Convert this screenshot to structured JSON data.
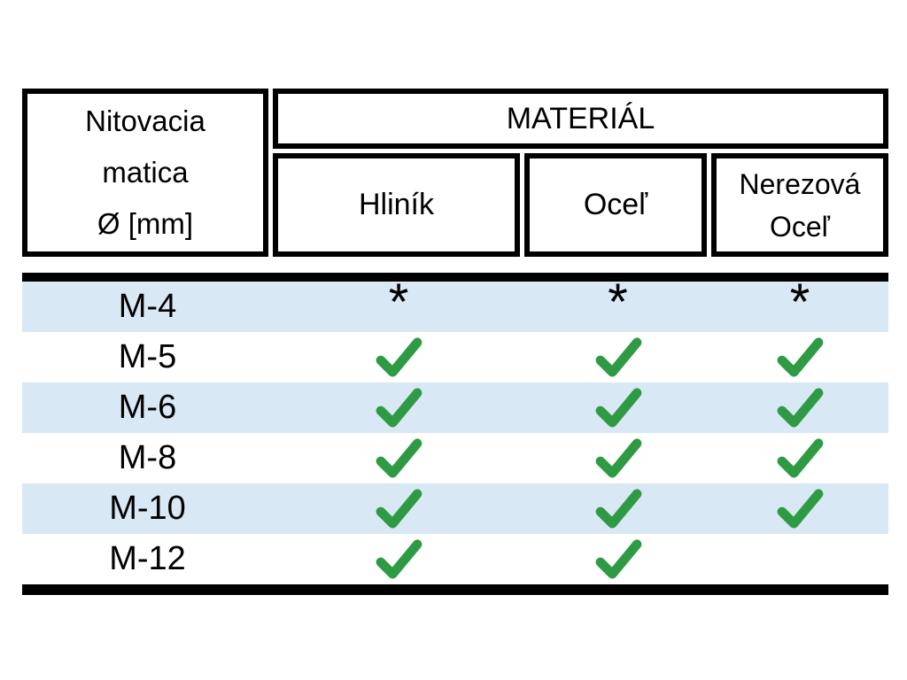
{
  "table": {
    "corner_header": {
      "lines": [
        "Nitovacia",
        "matica",
        "Ø [mm]"
      ]
    },
    "group_header": "MATERIÁL",
    "columns": [
      "Hliník",
      "Oceľ",
      "Nerezová Oceľ"
    ],
    "rows": [
      {
        "size": "M-4",
        "cells": [
          "asterisk",
          "asterisk",
          "asterisk"
        ]
      },
      {
        "size": "M-5",
        "cells": [
          "check",
          "check",
          "check"
        ]
      },
      {
        "size": "M-6",
        "cells": [
          "check",
          "check",
          "check"
        ]
      },
      {
        "size": "M-8",
        "cells": [
          "check",
          "check",
          "check"
        ]
      },
      {
        "size": "M-10",
        "cells": [
          "check",
          "check",
          "check"
        ]
      },
      {
        "size": "M-12",
        "cells": [
          "check",
          "check",
          "none"
        ]
      }
    ],
    "symbols": {
      "asterisk": "*",
      "check": "check-icon"
    },
    "colors": {
      "background": "#ffffff",
      "stripe_blue": "#d9e8f5",
      "row_white": "#ffffff",
      "check_green": "#2e9b44",
      "border_black": "#000000"
    }
  }
}
